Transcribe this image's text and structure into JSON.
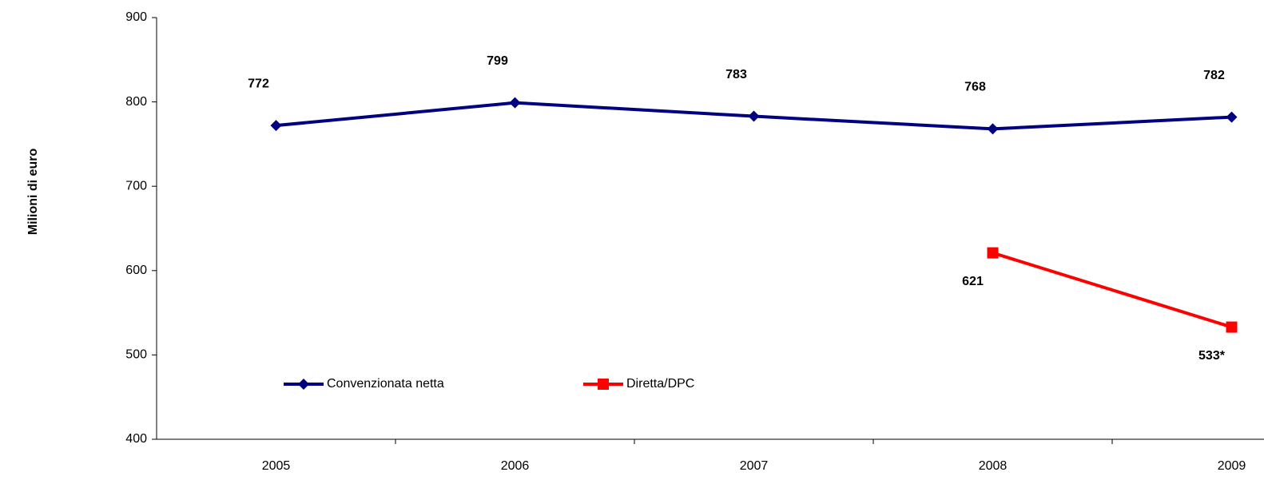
{
  "chart_data": {
    "type": "line",
    "y_label": "Milioni di euro",
    "categories": [
      "2005",
      "2006",
      "2007",
      "2008",
      "2009"
    ],
    "series": [
      {
        "name": "Convenzionata netta",
        "color": "#000080",
        "marker": "diamond",
        "values": [
          772,
          799,
          783,
          768,
          782
        ]
      },
      {
        "name": "Diretta/DPC",
        "color": "#ff0000",
        "marker": "square",
        "values": [
          null,
          null,
          null,
          621,
          533
        ],
        "value_labels": [
          null,
          null,
          null,
          "621",
          "533*"
        ]
      }
    ],
    "ylim": [
      400,
      900
    ],
    "yticks": [
      400,
      500,
      600,
      700,
      800,
      900
    ],
    "grid": false,
    "legend": "lower left"
  }
}
